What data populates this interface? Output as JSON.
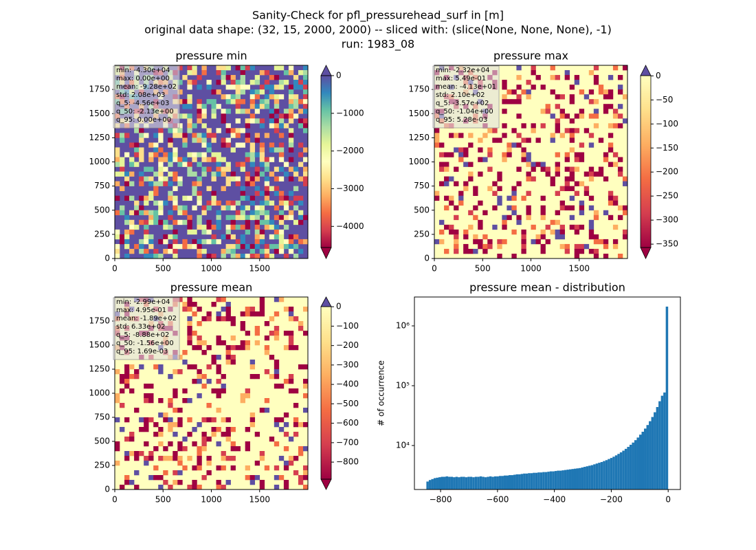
{
  "suptitle": [
    "Sanity-Check for pfl_pressurehead_surf in [m]",
    "original data shape: (32, 15, 2000, 2000) -- sliced with: (slice(None, None, None), -1)",
    "run: 1983_08"
  ],
  "chart_data": [
    {
      "type": "heatmap",
      "title": "pressure min",
      "xlim": [
        0,
        2000
      ],
      "ylim": [
        0,
        2000
      ],
      "xticks": [
        0,
        500,
        1000,
        1500
      ],
      "yticks": [
        0,
        250,
        500,
        750,
        1000,
        1250,
        1500,
        1750
      ],
      "stats": [
        "min: -4.30e+04",
        "max: 0.00e+00",
        "mean: -9.28e+02",
        "std: 2.08e+03",
        "q_5: -4.56e+03",
        "q_50: -2.13e+00",
        "q_95: 0.00e+00"
      ],
      "colorbar": {
        "lim": [
          -4560,
          0
        ],
        "ticks": [
          0,
          {
            "value": -1000,
            "label": "−1000"
          },
          {
            "value": -2000,
            "label": "−2000"
          },
          {
            "value": -3000,
            "label": "−3000"
          },
          {
            "value": -4000,
            "label": "−4000"
          }
        ],
        "colors": [
          "#9e0142",
          "#d53e4f",
          "#f46d43",
          "#fdae61",
          "#fee08b",
          "#ffffbf",
          "#e6f598",
          "#abdda4",
          "#66c2a5",
          "#3288bd",
          "#5e4fa2"
        ],
        "over": "#5e4fa2"
      }
    },
    {
      "type": "heatmap",
      "title": "pressure max",
      "xlim": [
        0,
        2000
      ],
      "ylim": [
        0,
        2000
      ],
      "xticks": [
        0,
        500,
        1000,
        1500
      ],
      "yticks": [
        0,
        250,
        500,
        750,
        1000,
        1250,
        1500,
        1750
      ],
      "stats": [
        "min: -2.32e+04",
        "max: 5.49e-01",
        "mean: -4.13e+01",
        "std: 2.10e+02",
        "q_5: -3.57e+02",
        "q_50: -1.04e+00",
        "q_95: 5.28e-03"
      ],
      "colorbar": {
        "lim": [
          -357,
          0.549
        ],
        "ticks": [
          0,
          {
            "value": -50,
            "label": "−50"
          },
          {
            "value": -100,
            "label": "−100"
          },
          {
            "value": -150,
            "label": "−150"
          },
          {
            "value": -200,
            "label": "−200"
          },
          {
            "value": -250,
            "label": "−250"
          },
          {
            "value": -300,
            "label": "−300"
          },
          {
            "value": -350,
            "label": "−350"
          }
        ],
        "colors": [
          "#9e0142",
          "#d53e4f",
          "#f46d43",
          "#fdae61",
          "#fee08b",
          "#ffffbf"
        ],
        "over": "#5e4fa2"
      }
    },
    {
      "type": "heatmap",
      "title": "pressure mean",
      "xlim": [
        0,
        2000
      ],
      "ylim": [
        0,
        2000
      ],
      "xticks": [
        0,
        500,
        1000,
        1500
      ],
      "yticks": [
        0,
        250,
        500,
        750,
        1000,
        1250,
        1500,
        1750
      ],
      "stats": [
        "min: -2.99e+04",
        "max: 4.95e-01",
        "mean: -1.89e+02",
        "std: 6.33e+02",
        "q_5: -8.88e+02",
        "q_50: -1.56e+00",
        "q_95: 1.69e-03"
      ],
      "colorbar": {
        "lim": [
          -888,
          0.495
        ],
        "ticks": [
          0,
          {
            "value": -100,
            "label": "−100"
          },
          {
            "value": -200,
            "label": "−200"
          },
          {
            "value": -300,
            "label": "−300"
          },
          {
            "value": -400,
            "label": "−400"
          },
          {
            "value": -500,
            "label": "−500"
          },
          {
            "value": -600,
            "label": "−600"
          },
          {
            "value": -700,
            "label": "−700"
          },
          {
            "value": -800,
            "label": "−800"
          }
        ],
        "colors": [
          "#9e0142",
          "#d53e4f",
          "#f46d43",
          "#fdae61",
          "#fee08b",
          "#ffffbf"
        ],
        "over": "#5e4fa2"
      }
    },
    {
      "type": "histogram",
      "title": "pressure mean - distribution",
      "ylabel": "# of occurrence",
      "color": "#1f77b4",
      "yscale": "log",
      "xlim": [
        -892,
        43
      ],
      "ylim": [
        1840,
        3040000
      ],
      "xticks": [
        {
          "value": -800,
          "label": "−800"
        },
        {
          "value": -600,
          "label": "−600"
        },
        {
          "value": -400,
          "label": "−400"
        },
        {
          "value": -200,
          "label": "−200"
        },
        0
      ],
      "yticks": [
        {
          "value": 10000,
          "label": "10⁴"
        },
        {
          "value": 100000,
          "label": "10⁵"
        },
        {
          "value": 1000000,
          "label": "10⁶"
        }
      ],
      "bins": [
        -850,
        -841.5,
        -833,
        -824.5,
        -816,
        -807.5,
        -799,
        -790.5,
        -782,
        -773.5,
        -765,
        -756.5,
        -748,
        -739.5,
        -731,
        -722.5,
        -714,
        -705.5,
        -697,
        -688.5,
        -680,
        -671.5,
        -663,
        -654.5,
        -646,
        -637.5,
        -629,
        -620.5,
        -612,
        -603.5,
        -595,
        -586.5,
        -578,
        -569.5,
        -561,
        -552.5,
        -544,
        -535.5,
        -527,
        -518.5,
        -510,
        -501.5,
        -493,
        -484.5,
        -476,
        -467.5,
        -459,
        -450.5,
        -442,
        -433.5,
        -425,
        -416.5,
        -408,
        -399.5,
        -391,
        -382.5,
        -374,
        -365.5,
        -357,
        -348.5,
        -340,
        -331.5,
        -323,
        -314.5,
        -306,
        -297.5,
        -289,
        -280.5,
        -272,
        -263.5,
        -255,
        -246.5,
        -238,
        -229.5,
        -221,
        -212.5,
        -204,
        -195.5,
        -187,
        -178.5,
        -170,
        -161.5,
        -153,
        -144.5,
        -136,
        -127.5,
        -119,
        -110.5,
        -102,
        -93.5,
        -85,
        -76.5,
        -68,
        -59.5,
        -51,
        -42.5,
        -34,
        -25.5,
        -17,
        -8.5,
        0
      ],
      "values": [
        2500,
        2650,
        2750,
        2850,
        2900,
        2950,
        3000,
        3000,
        3050,
        3000,
        3000,
        2950,
        3000,
        2950,
        3000,
        3000,
        2950,
        3000,
        3000,
        2950,
        3000,
        3000,
        3050,
        3000,
        2950,
        3000,
        3050,
        3000,
        3050,
        3050,
        3100,
        3100,
        3150,
        3150,
        3200,
        3200,
        3250,
        3300,
        3300,
        3350,
        3400,
        3400,
        3450,
        3450,
        3500,
        3500,
        3550,
        3550,
        3600,
        3600,
        3650,
        3700,
        3700,
        3750,
        3800,
        3800,
        3850,
        3900,
        3950,
        4000,
        4050,
        4100,
        4150,
        4200,
        4300,
        4400,
        4500,
        4600,
        4700,
        4850,
        5000,
        5150,
        5300,
        5500,
        5700,
        5950,
        6200,
        6500,
        6850,
        7250,
        7700,
        8200,
        8800,
        9500,
        10300,
        11200,
        12300,
        13600,
        15200,
        17000,
        19200,
        22000,
        25500,
        30000,
        36000,
        44000,
        55000,
        68000,
        77000,
        2100000
      ]
    }
  ]
}
